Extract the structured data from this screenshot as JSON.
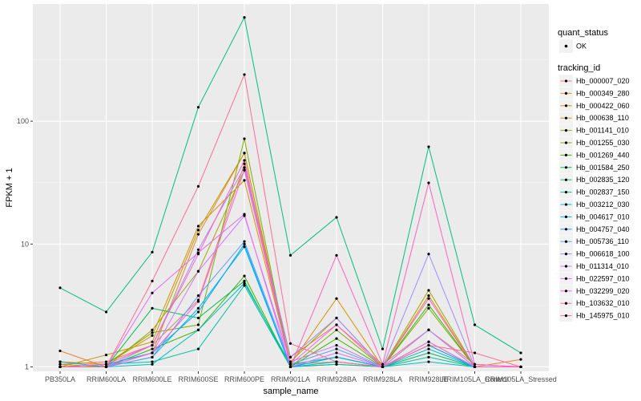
{
  "chart_data": {
    "type": "line",
    "xlabel": "sample_name",
    "ylabel": "FPKM + 1",
    "y_scale": "log10",
    "ylim": [
      0.92,
      900
    ],
    "y_ticks": [
      {
        "value": 1,
        "label": "1"
      },
      {
        "value": 10,
        "label": "10"
      },
      {
        "value": 100,
        "label": "100"
      }
    ],
    "categories": [
      "PB350LA",
      "RRIM600LA",
      "RRIM600LE",
      "RRIM600SE",
      "RRIM600PE",
      "RRIM901LA",
      "RRIM928BA",
      "RRIM928LA",
      "RRIM928LE",
      "RRIM105LA_Control",
      "RRIM105LA_Stressed"
    ],
    "grid": true,
    "background": "#ebebeb",
    "legend_placement": "right",
    "legend_shape": {
      "title": "quant_status",
      "items": [
        "OK"
      ]
    },
    "legend_color_title": "tracking_id",
    "series": [
      {
        "name": "Hb_000007_020",
        "color": "#f8766d",
        "values": [
          1.05,
          1.1,
          1.5,
          3.5,
          45,
          1.2,
          2.2,
          1.05,
          2.0,
          1.05,
          1.0
        ]
      },
      {
        "name": "Hb_000349_280",
        "color": "#ea8331",
        "values": [
          1.35,
          1.0,
          1.3,
          12.0,
          55,
          1.05,
          1.1,
          1.0,
          1.5,
          1.0,
          1.15
        ]
      },
      {
        "name": "Hb_000422_060",
        "color": "#d89000",
        "values": [
          1.1,
          1.05,
          1.8,
          14.0,
          33,
          1.05,
          3.6,
          1.0,
          3.8,
          1.0,
          1.0
        ]
      },
      {
        "name": "Hb_000638_110",
        "color": "#c09b00",
        "values": [
          1.0,
          1.25,
          1.6,
          13.0,
          55,
          1.0,
          1.05,
          1.0,
          1.6,
          1.0,
          1.0
        ]
      },
      {
        "name": "Hb_001141_010",
        "color": "#a3a500",
        "values": [
          1.05,
          1.0,
          2.0,
          6.0,
          40,
          1.1,
          2.5,
          1.0,
          4.2,
          1.0,
          1.0
        ]
      },
      {
        "name": "Hb_001255_030",
        "color": "#7cae00",
        "values": [
          1.0,
          1.05,
          1.9,
          2.2,
          72,
          1.0,
          2.0,
          1.0,
          3.0,
          1.0,
          1.0
        ]
      },
      {
        "name": "Hb_001269_440",
        "color": "#39b600",
        "values": [
          1.0,
          1.0,
          1.4,
          2.0,
          5.5,
          1.0,
          1.7,
          1.0,
          3.2,
          1.0,
          1.0
        ]
      },
      {
        "name": "Hb_001584_250",
        "color": "#00bb4e",
        "values": [
          1.0,
          1.0,
          3.0,
          2.5,
          5.0,
          1.0,
          1.2,
          1.0,
          1.3,
          1.0,
          1.0
        ]
      },
      {
        "name": "Hb_002835_120",
        "color": "#00bf7d",
        "values": [
          4.4,
          2.8,
          8.6,
          130,
          700,
          8.1,
          16.5,
          1.4,
          62,
          2.2,
          1.3
        ]
      },
      {
        "name": "Hb_002837_150",
        "color": "#00c1a3",
        "values": [
          1.0,
          1.05,
          1.1,
          1.4,
          4.6,
          1.0,
          1.05,
          1.0,
          1.2,
          1.0,
          1.0
        ]
      },
      {
        "name": "Hb_003212_030",
        "color": "#00bfc4",
        "values": [
          1.0,
          1.0,
          1.05,
          2.0,
          4.8,
          1.05,
          1.2,
          1.0,
          1.1,
          1.0,
          1.0
        ]
      },
      {
        "name": "Hb_004617_010",
        "color": "#00b8e7",
        "values": [
          1.1,
          1.0,
          1.2,
          3.0,
          9.5,
          1.0,
          1.1,
          1.0,
          1.4,
          1.0,
          1.0
        ]
      },
      {
        "name": "Hb_004757_040",
        "color": "#00a9ff",
        "values": [
          1.0,
          1.05,
          1.3,
          2.8,
          10,
          1.0,
          1.2,
          1.0,
          1.5,
          1.0,
          1.0
        ]
      },
      {
        "name": "Hb_005736_110",
        "color": "#619cff",
        "values": [
          1.0,
          1.0,
          1.2,
          3.8,
          10.5,
          1.05,
          1.4,
          1.0,
          2.0,
          1.0,
          1.0
        ]
      },
      {
        "name": "Hb_006618_100",
        "color": "#9f8cff",
        "values": [
          1.0,
          1.0,
          1.5,
          9.0,
          42,
          1.2,
          2.5,
          1.0,
          8.3,
          1.0,
          1.0
        ]
      },
      {
        "name": "Hb_011314_010",
        "color": "#c77cff",
        "values": [
          1.0,
          1.0,
          1.3,
          6.0,
          17,
          1.1,
          1.5,
          1.0,
          2.0,
          1.0,
          1.0
        ]
      },
      {
        "name": "Hb_022597_010",
        "color": "#e76bf3",
        "values": [
          1.0,
          1.0,
          4.0,
          8.5,
          17.5,
          1.0,
          1.3,
          1.0,
          1.6,
          1.0,
          1.0
        ]
      },
      {
        "name": "Hb_032299_020",
        "color": "#fa62db",
        "values": [
          1.0,
          1.0,
          1.3,
          3.4,
          40,
          1.05,
          2.2,
          1.0,
          3.6,
          1.0,
          1.0
        ]
      },
      {
        "name": "Hb_103632_010",
        "color": "#ff62bc",
        "values": [
          1.0,
          1.05,
          1.5,
          8.3,
          48,
          1.0,
          8.1,
          1.05,
          31.5,
          1.05,
          1.0
        ]
      },
      {
        "name": "Hb_145975_010",
        "color": "#ff6c91",
        "values": [
          1.0,
          1.0,
          5.0,
          29.5,
          240,
          1.55,
          1.1,
          1.0,
          1.5,
          1.3,
          1.0
        ]
      }
    ]
  }
}
